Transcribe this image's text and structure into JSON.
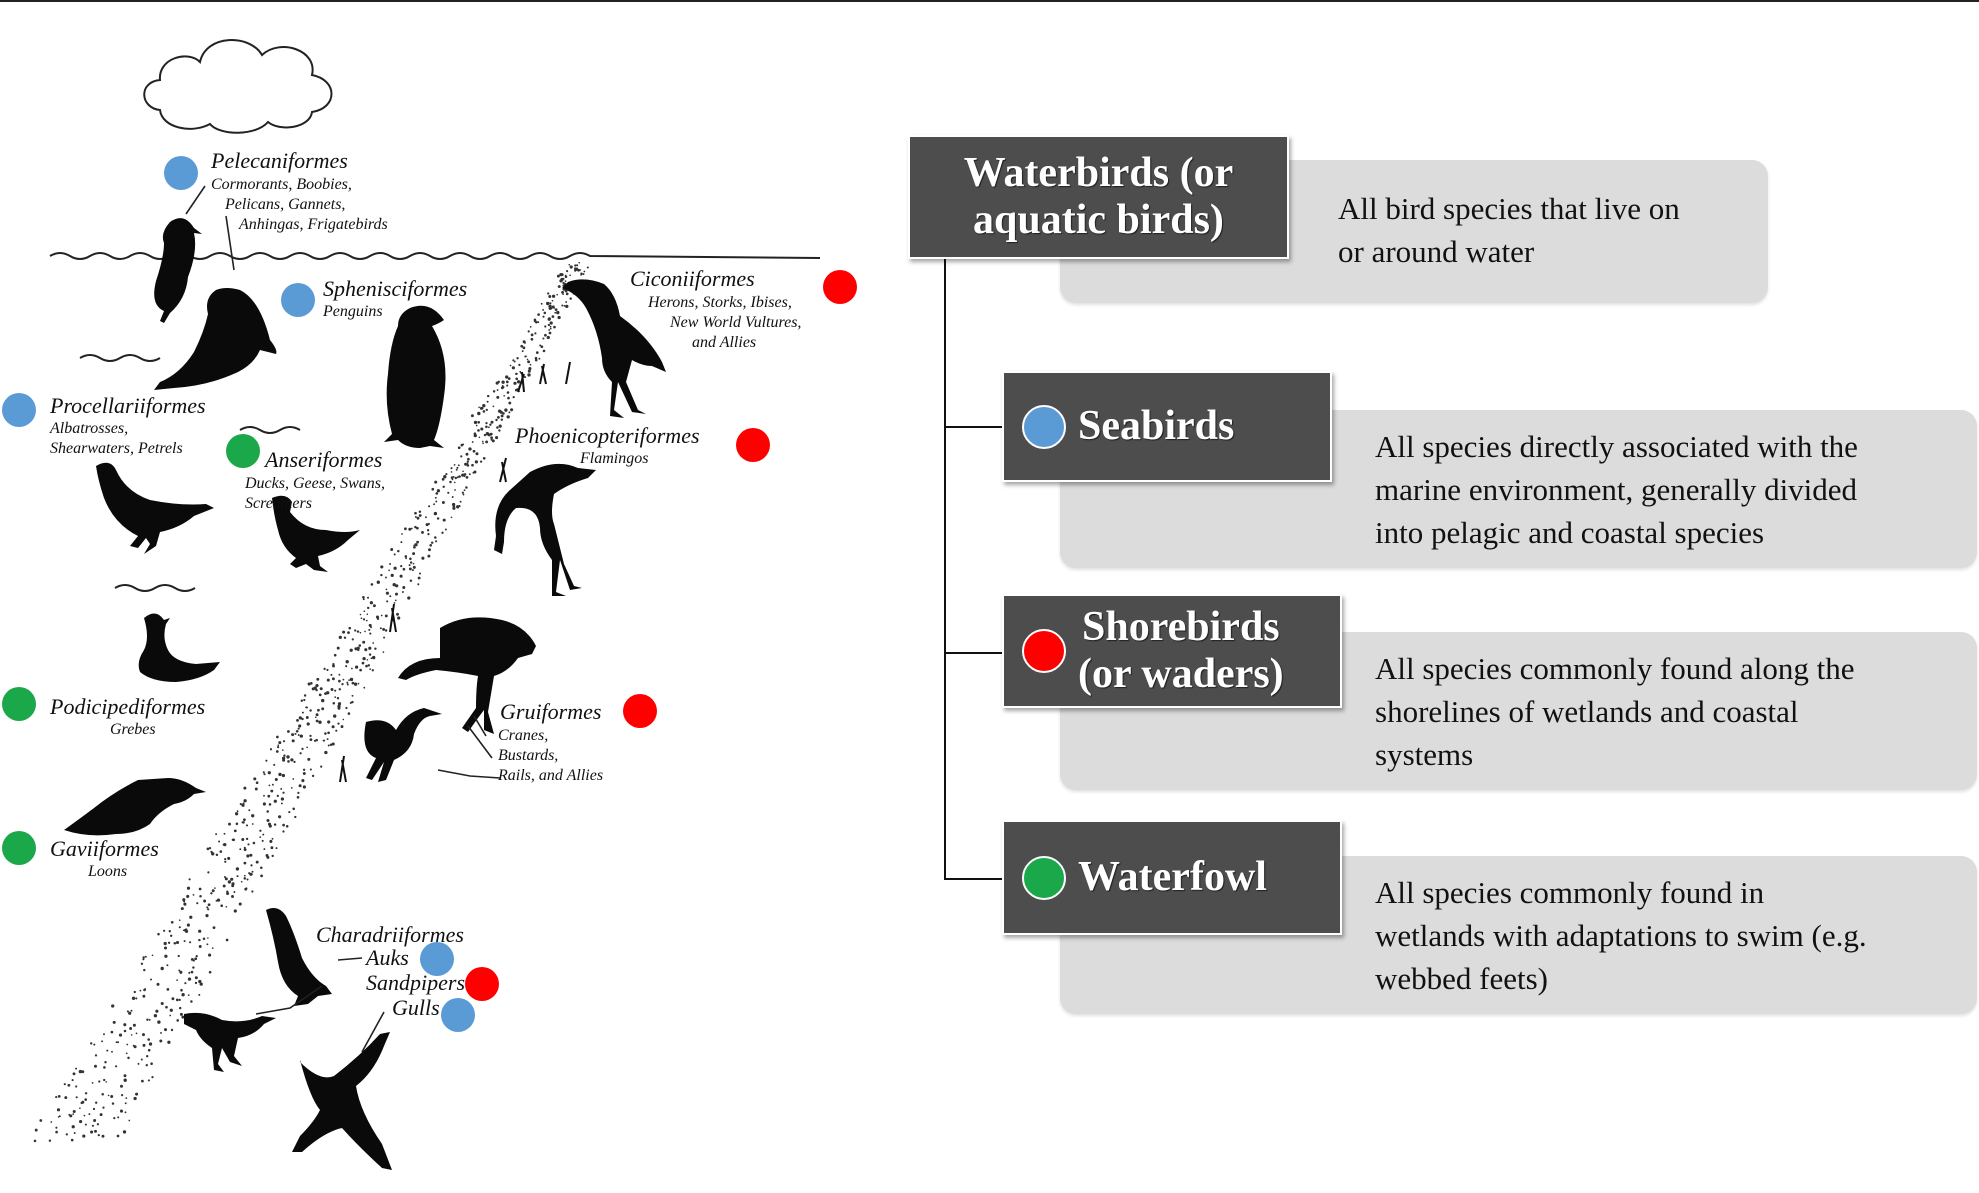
{
  "colors": {
    "seabird": "#5b9bd5",
    "shorebird": "#ff0000",
    "waterfowl": "#1aa84b",
    "header_box": "#4d4d4d",
    "description_box": "#dcdcdc"
  },
  "illustration": {
    "orders": [
      {
        "id": "pelecaniformes",
        "name": "Pelecaniformes",
        "members": [
          "Cormorants, Boobies,",
          "Pelicans, Gannets,",
          "Anhingas, Frigatebirds"
        ],
        "group": "seabird"
      },
      {
        "id": "sphenisciformes",
        "name": "Sphenisciformes",
        "members": [
          "Penguins"
        ],
        "group": "seabird"
      },
      {
        "id": "procellariiformes",
        "name": "Procellariiformes",
        "members": [
          "Albatrosses,",
          "Shearwaters, Petrels"
        ],
        "group": "seabird"
      },
      {
        "id": "anseriformes",
        "name": "Anseriformes",
        "members": [
          "Ducks, Geese, Swans,",
          "Screamers"
        ],
        "group": "waterfowl"
      },
      {
        "id": "podicipediformes",
        "name": "Podicipediformes",
        "members": [
          "Grebes"
        ],
        "group": "waterfowl"
      },
      {
        "id": "gaviiformes",
        "name": "Gaviiformes",
        "members": [
          "Loons"
        ],
        "group": "waterfowl"
      },
      {
        "id": "ciconiiformes",
        "name": "Ciconiiformes",
        "members": [
          "Herons, Storks, Ibises,",
          "New World Vultures,",
          "and Allies"
        ],
        "group": "shorebird"
      },
      {
        "id": "phoenicopteriformes",
        "name": "Phoenicopteriformes",
        "members": [
          "Flamingos"
        ],
        "group": "shorebird"
      },
      {
        "id": "gruiformes",
        "name": "Gruiformes",
        "members": [
          "Cranes,",
          "Bustards,",
          "Rails, and Allies"
        ],
        "group": "shorebird"
      },
      {
        "id": "charadriiformes",
        "name": "Charadriiformes",
        "members": [
          "Auks",
          "Sandpipers",
          "Gulls"
        ],
        "member_groups": [
          "seabird",
          "shorebird",
          "seabird"
        ]
      }
    ]
  },
  "panel": {
    "header": {
      "title_line1": "Waterbirds (or",
      "title_line2": "aquatic birds)",
      "description_line1": "All bird species that live on",
      "description_line2": "or around water"
    },
    "categories": [
      {
        "id": "seabirds",
        "title_line1": "Seabirds",
        "title_line2": "",
        "dot": "seabird",
        "description": [
          "All species directly associated with the",
          "marine environment, generally divided",
          "into pelagic and coastal species"
        ]
      },
      {
        "id": "shorebirds",
        "title_line1": "Shorebirds",
        "title_line2": "(or waders)",
        "dot": "shorebird",
        "description": [
          "All species commonly found along the",
          "shorelines of wetlands and coastal",
          "systems"
        ]
      },
      {
        "id": "waterfowl",
        "title_line1": "Waterfowl",
        "title_line2": "",
        "dot": "waterfowl",
        "description": [
          "All species commonly found in",
          "wetlands with adaptations to swim (e.g.",
          "webbed feets)"
        ]
      }
    ]
  }
}
